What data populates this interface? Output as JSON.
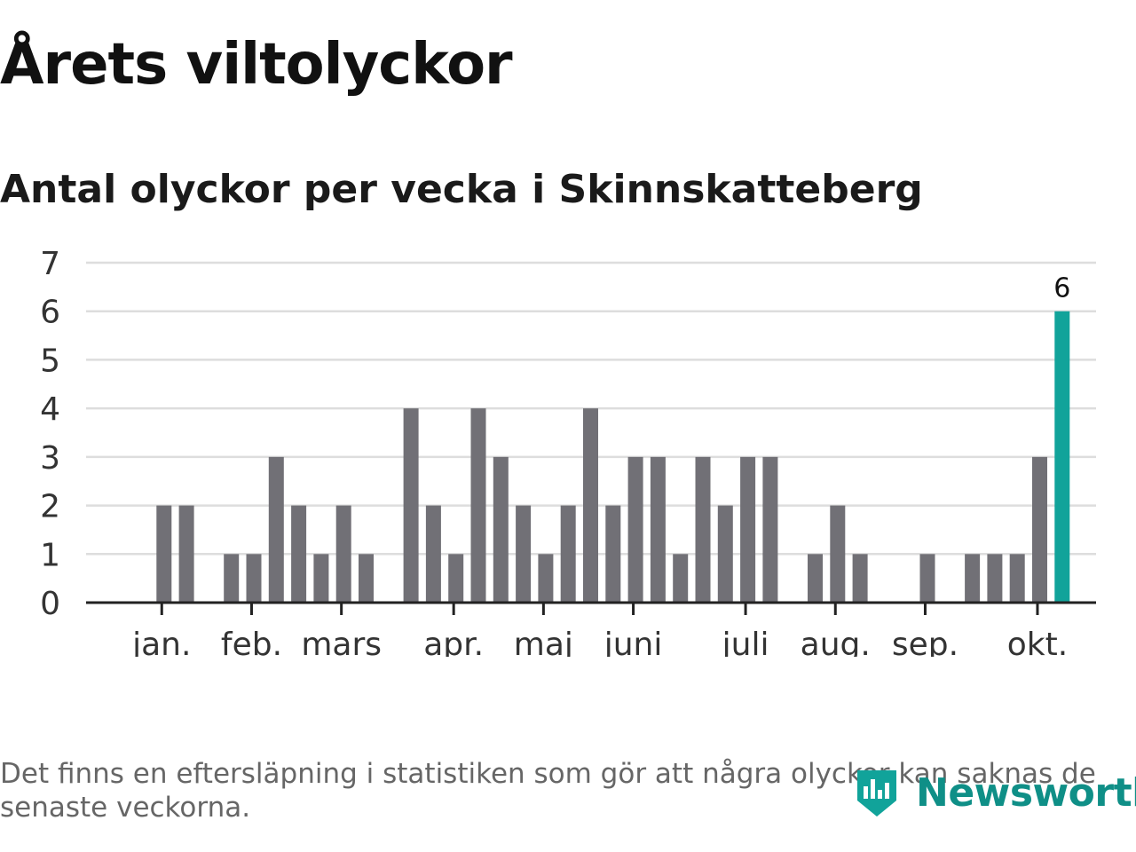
{
  "title": "Årets viltolyckor",
  "subtitle": "Antal olyckor per vecka i Skinnskatteberg",
  "footnote": "Det finns en eftersläpning i statistiken som gör att några olyckor kan saknas de senaste veckorna.",
  "brand": {
    "name": "Newsworthy",
    "icon": "newsworthy-logo-icon"
  },
  "colors": {
    "bar": "#717076",
    "highlight": "#11a39a",
    "grid": "#dddddd",
    "axis": "#222222",
    "text": "#333333"
  },
  "chart_data": {
    "type": "bar",
    "title": "Antal olyckor per vecka i Skinnskatteberg",
    "xlabel": "",
    "ylabel": "",
    "ylim": [
      0,
      7
    ],
    "yticks": [
      0,
      1,
      2,
      3,
      4,
      5,
      6,
      7
    ],
    "weeks": [
      1,
      2,
      3,
      4,
      5,
      6,
      7,
      8,
      9,
      10,
      11,
      12,
      13,
      14,
      15,
      16,
      17,
      18,
      19,
      20,
      21,
      22,
      23,
      24,
      25,
      26,
      27,
      28,
      29,
      30,
      31,
      32,
      33,
      34,
      35,
      36,
      37,
      38,
      39,
      40,
      41,
      42
    ],
    "values": [
      0,
      2,
      2,
      0,
      1,
      1,
      3,
      2,
      1,
      2,
      1,
      0,
      4,
      2,
      1,
      4,
      3,
      2,
      1,
      2,
      4,
      2,
      3,
      3,
      1,
      3,
      2,
      3,
      3,
      0,
      1,
      2,
      1,
      0,
      0,
      1,
      0,
      1,
      1,
      1,
      3,
      6
    ],
    "highlight_index": 41,
    "data_labels": [
      {
        "index": 41,
        "text": "6"
      }
    ],
    "month_ticks": [
      {
        "label": "jan.",
        "week": 1.9
      },
      {
        "label": "feb.",
        "week": 5.9
      },
      {
        "label": "mars",
        "week": 9.9
      },
      {
        "label": "apr.",
        "week": 14.9
      },
      {
        "label": "maj",
        "week": 18.9
      },
      {
        "label": "juni",
        "week": 22.9
      },
      {
        "label": "juli",
        "week": 27.9
      },
      {
        "label": "aug.",
        "week": 31.9
      },
      {
        "label": "sep.",
        "week": 35.9
      },
      {
        "label": "okt.",
        "week": 40.9
      }
    ]
  }
}
